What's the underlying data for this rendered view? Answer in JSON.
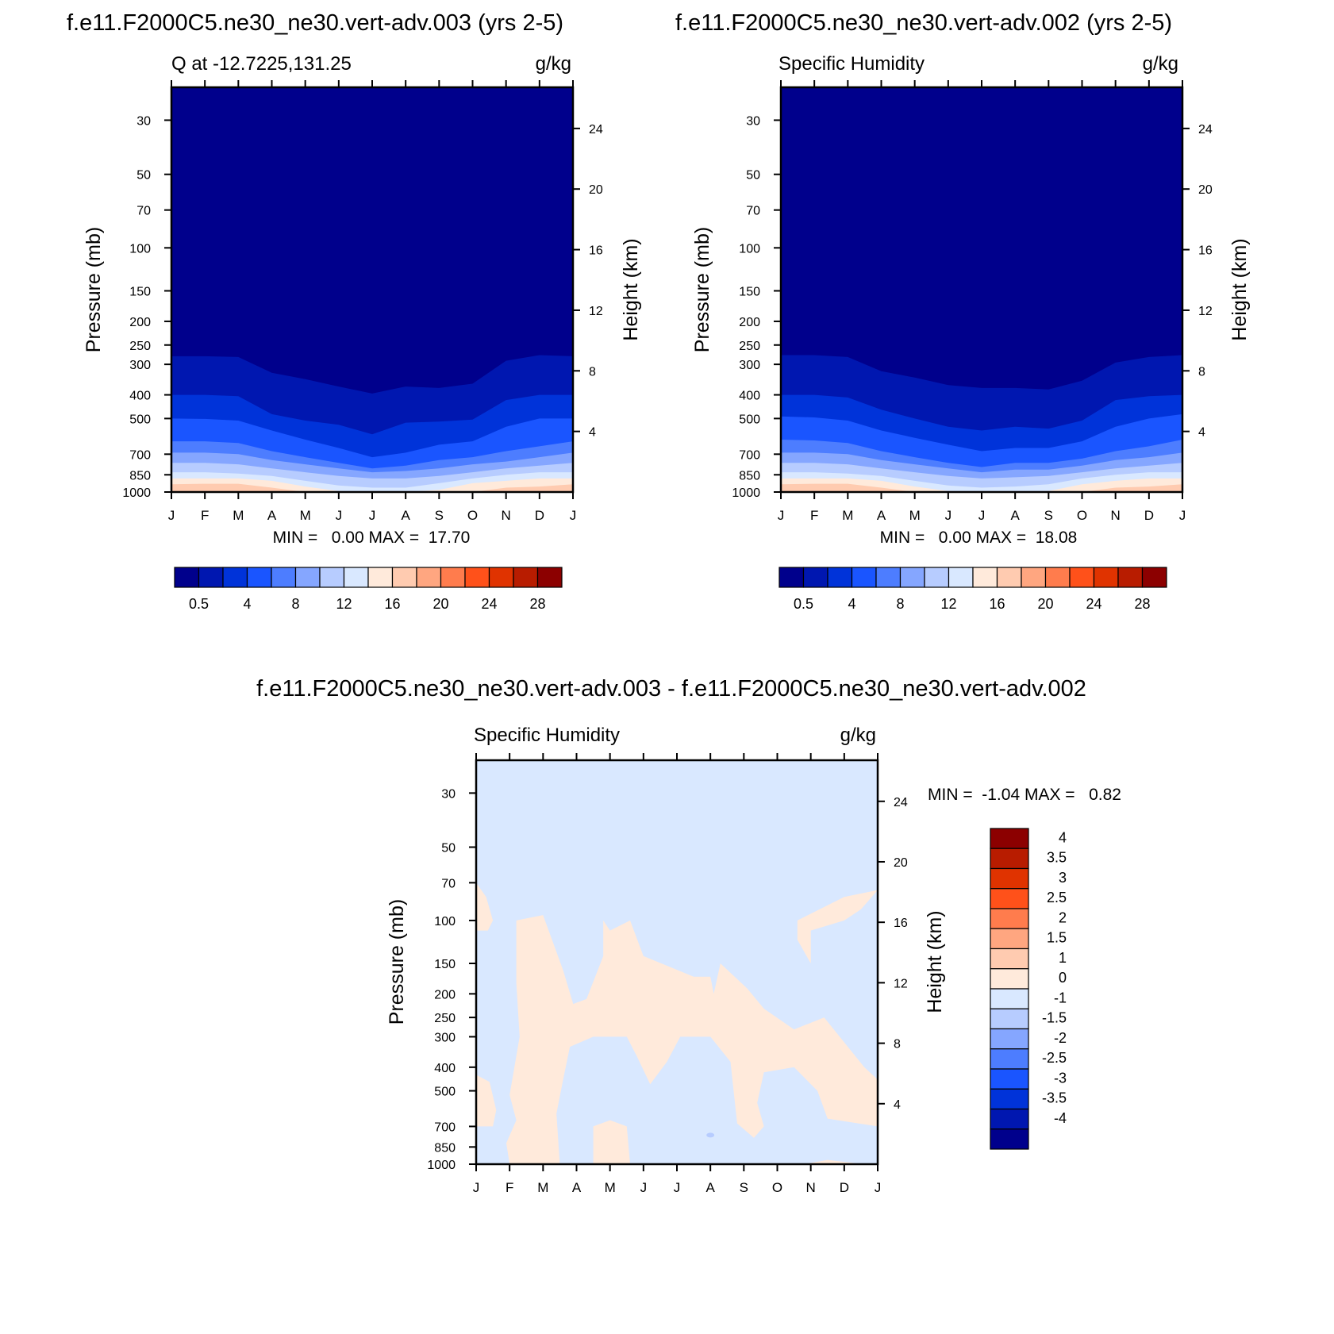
{
  "months": [
    "J",
    "F",
    "M",
    "A",
    "M",
    "J",
    "J",
    "A",
    "S",
    "O",
    "N",
    "D",
    "J"
  ],
  "pressure_ticks": [
    "30",
    "50",
    "70",
    "100",
    "150",
    "200",
    "250",
    "300",
    "400",
    "500",
    "700",
    "850",
    "1000"
  ],
  "pressure_values": [
    30,
    50,
    70,
    100,
    150,
    200,
    250,
    300,
    400,
    500,
    700,
    850,
    1000
  ],
  "height_ticks": [
    "24",
    "20",
    "16",
    "12",
    "8",
    "4"
  ],
  "height_values": [
    24,
    20,
    16,
    12,
    8,
    4
  ],
  "y_label": "Pressure (mb)",
  "y2_label": "Height (km)",
  "colors": {
    "abs": [
      "#00008c",
      "#0017b0",
      "#0033d9",
      "#1a55ff",
      "#4d7dff",
      "#85a6ff",
      "#b7ccff",
      "#d9e8ff",
      "#ffeadb",
      "#ffcbb0",
      "#ffa680",
      "#ff7c4d",
      "#ff511a",
      "#e03300",
      "#b81c00",
      "#8c0000"
    ],
    "diff": [
      "#00008c",
      "#0017b0",
      "#0033d9",
      "#1a55ff",
      "#4d7dff",
      "#85a6ff",
      "#b7ccff",
      "#d9e8ff",
      "#ffeadb",
      "#ffcbb0",
      "#ffa680",
      "#ff7c4d",
      "#ff511a",
      "#e03300",
      "#b81c00",
      "#8c0000"
    ]
  },
  "panels": [
    {
      "title": "f.e11.F2000C5.ne30_ne30.vert-adv.003 (yrs 2-5)",
      "left_label": "Q at -12.7225,131.25",
      "units": "g/kg",
      "minmax": "MIN =   0.00 MAX =  17.70",
      "colorbar_labels": [
        "0.5",
        "4",
        "8",
        "12",
        "16",
        "20",
        "24",
        "28"
      ]
    },
    {
      "title": "f.e11.F2000C5.ne30_ne30.vert-adv.002 (yrs 2-5)",
      "left_label": "Specific Humidity",
      "units": "g/kg",
      "minmax": "MIN =   0.00 MAX =  18.08",
      "colorbar_labels": [
        "0.5",
        "4",
        "8",
        "12",
        "16",
        "20",
        "24",
        "28"
      ]
    },
    {
      "title": "f.e11.F2000C5.ne30_ne30.vert-adv.003 - f.e11.F2000C5.ne30_ne30.vert-adv.002",
      "left_label": "Specific Humidity",
      "units": "g/kg",
      "minmax": "MIN =  -1.04 MAX =   0.82",
      "colorbar_labels": [
        "4",
        "3.5",
        "3",
        "2.5",
        "2",
        "1.5",
        "1",
        "0",
        "-1",
        "-1.5",
        "-2",
        "-2.5",
        "-3",
        "-3.5",
        "-4"
      ]
    }
  ],
  "chart_data": [
    {
      "type": "heatmap",
      "title": "f.e11.F2000C5.ne30_ne30.vert-adv.003 (yrs 2-5)",
      "subtitle": "Q at -12.7225,131.25",
      "units": "g/kg",
      "xlabel": "",
      "ylabel": "Pressure (mb)",
      "y2label": "Height (km)",
      "x": [
        "J",
        "F",
        "M",
        "A",
        "M",
        "J",
        "J",
        "A",
        "S",
        "O",
        "N",
        "D",
        "J"
      ],
      "contour_levels": [
        0.5,
        2,
        4,
        6,
        8,
        10,
        12,
        14,
        16,
        18,
        20,
        22,
        24,
        26,
        28
      ],
      "boundaries_pressure_mb": {
        "0.5": [
          278,
          278,
          280,
          325,
          345,
          370,
          395,
          370,
          375,
          360,
          290,
          275,
          278
        ],
        "2": [
          400,
          400,
          405,
          480,
          510,
          530,
          580,
          520,
          515,
          505,
          420,
          400,
          400
        ],
        "4": [
          500,
          502,
          510,
          560,
          610,
          660,
          720,
          690,
          640,
          620,
          540,
          500,
          500
        ],
        "6": [
          620,
          620,
          630,
          680,
          720,
          760,
          800,
          780,
          740,
          720,
          680,
          650,
          620
        ],
        "8": [
          690,
          690,
          700,
          740,
          770,
          800,
          830,
          820,
          800,
          770,
          750,
          720,
          690
        ],
        "10": [
          760,
          760,
          770,
          800,
          830,
          860,
          880,
          880,
          860,
          830,
          800,
          780,
          760
        ],
        "12": [
          830,
          830,
          840,
          860,
          900,
          940,
          960,
          960,
          920,
          880,
          850,
          830,
          830
        ],
        "14": [
          880,
          880,
          880,
          900,
          950,
          990,
          1000,
          1000,
          980,
          920,
          900,
          880,
          880
        ],
        "16": [
          930,
          925,
          925,
          960,
          1000,
          1000,
          1000,
          1000,
          1000,
          1000,
          960,
          950,
          930
        ]
      },
      "min": 0.0,
      "max": 17.7
    },
    {
      "type": "heatmap",
      "title": "f.e11.F2000C5.ne30_ne30.vert-adv.002 (yrs 2-5)",
      "subtitle": "Specific Humidity",
      "units": "g/kg",
      "xlabel": "",
      "ylabel": "Pressure (mb)",
      "y2label": "Height (km)",
      "x": [
        "J",
        "F",
        "M",
        "A",
        "M",
        "J",
        "J",
        "A",
        "S",
        "O",
        "N",
        "D",
        "J"
      ],
      "contour_levels": [
        0.5,
        2,
        4,
        6,
        8,
        10,
        12,
        14,
        16,
        18,
        20,
        22,
        24,
        26,
        28
      ],
      "boundaries_pressure_mb": {
        "0.5": [
          275,
          275,
          280,
          320,
          340,
          365,
          375,
          375,
          380,
          350,
          295,
          280,
          275
        ],
        "2": [
          400,
          400,
          410,
          460,
          500,
          540,
          560,
          540,
          550,
          510,
          420,
          405,
          400
        ],
        "4": [
          490,
          495,
          510,
          560,
          600,
          640,
          680,
          660,
          660,
          620,
          540,
          500,
          480
        ],
        "6": [
          610,
          615,
          630,
          680,
          720,
          760,
          790,
          760,
          760,
          730,
          680,
          650,
          610
        ],
        "8": [
          690,
          690,
          700,
          740,
          770,
          800,
          830,
          810,
          810,
          780,
          740,
          720,
          690
        ],
        "10": [
          760,
          760,
          770,
          800,
          830,
          860,
          880,
          870,
          860,
          830,
          800,
          780,
          760
        ],
        "12": [
          830,
          830,
          840,
          860,
          900,
          940,
          960,
          950,
          930,
          880,
          850,
          830,
          830
        ],
        "14": [
          880,
          880,
          880,
          900,
          950,
          990,
          1000,
          1000,
          990,
          930,
          900,
          880,
          880
        ],
        "16": [
          930,
          925,
          925,
          960,
          1000,
          1000,
          1000,
          1000,
          1000,
          1000,
          960,
          950,
          930
        ]
      },
      "min": 0.0,
      "max": 18.08
    },
    {
      "type": "heatmap",
      "title": "f.e11.F2000C5.ne30_ne30.vert-adv.003 - f.e11.F2000C5.ne30_ne30.vert-adv.002",
      "subtitle": "Specific Humidity",
      "units": "g/kg",
      "xlabel": "",
      "ylabel": "Pressure (mb)",
      "y2label": "Height (km)",
      "x": [
        "J",
        "F",
        "M",
        "A",
        "M",
        "J",
        "J",
        "A",
        "S",
        "O",
        "N",
        "D",
        "J"
      ],
      "contour_levels": [
        -4,
        -3.5,
        -3,
        -2.5,
        -2,
        -1.5,
        -1,
        0,
        1,
        1.5,
        2,
        2.5,
        3,
        3.5,
        4
      ],
      "min": -1.04,
      "max": 0.82
    }
  ]
}
